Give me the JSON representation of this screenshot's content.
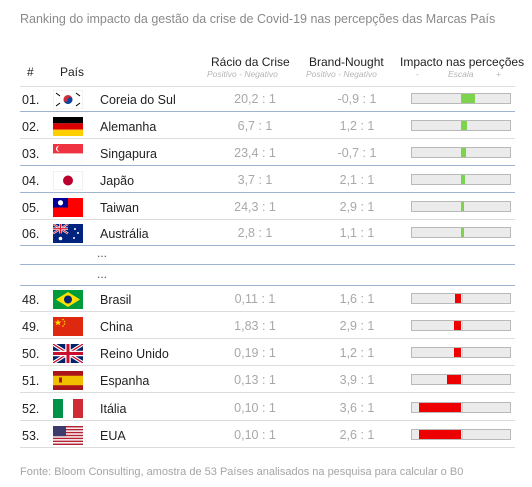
{
  "title": "Ranking do impacto da gestão da crise de Covid-19 nas percepções das Marcas País",
  "headers": {
    "rank": "#",
    "country": "País",
    "ratio": "Rácio da Crise",
    "ratio_sub": "Positivo - Negativo",
    "brand": "Brand-Nought",
    "brand_sub": "Positivo - Negativo",
    "impact": "Impacto nas perceções",
    "impact_sub": "Escala",
    "impact_minus": "-",
    "impact_plus": "+"
  },
  "ellipsis": [
    "...",
    "..."
  ],
  "footer": "Fonte: Bloom Consulting, amostra de 53 Países analisados na pesquisa para calcular o B0",
  "colors": {
    "positive": "#7dd34d",
    "negative": "#ee0000",
    "divider_blue": "#9fb4cf",
    "divider_gray": "#dcdcdc"
  },
  "chart_data": {
    "type": "table",
    "columns": [
      "#",
      "País",
      "Rácio da Crise",
      "Brand-Nought",
      "Impacto nas perceções"
    ],
    "rows": [
      {
        "rank": "01.",
        "flag": "south-korea",
        "country": "Coreia do Sul",
        "ratio": "20,2 : 1",
        "brand": "-0,9 : 1",
        "impact": 0.28
      },
      {
        "rank": "02.",
        "flag": "germany",
        "country": "Alemanha",
        "ratio": "6,7 : 1",
        "brand": "1,2 : 1",
        "impact": 0.12
      },
      {
        "rank": "03.",
        "flag": "singapore",
        "country": "Singapura",
        "ratio": "23,4 : 1",
        "brand": "-0,7 : 1",
        "impact": 0.1
      },
      {
        "rank": "04.",
        "flag": "japan",
        "country": "Japão",
        "ratio": "3,7 : 1",
        "brand": "2,1 : 1",
        "impact": 0.08
      },
      {
        "rank": "05.",
        "flag": "taiwan",
        "country": "Taiwan",
        "ratio": "24,3 : 1",
        "brand": "2,9 : 1",
        "impact": 0.06
      },
      {
        "rank": "06.",
        "flag": "australia",
        "country": "Austrália",
        "ratio": "2,8 : 1",
        "brand": "1,1 : 1",
        "impact": 0.05
      },
      {
        "rank": "48.",
        "flag": "brazil",
        "country": "Brasil",
        "ratio": "0,11 : 1",
        "brand": "1,6 : 1",
        "impact": -0.12
      },
      {
        "rank": "49.",
        "flag": "china",
        "country": "China",
        "ratio": "1,83 : 1",
        "brand": "2,9 : 1",
        "impact": -0.14
      },
      {
        "rank": "50.",
        "flag": "uk",
        "country": "Reino Unido",
        "ratio": "0,19 : 1",
        "brand": "1,2 : 1",
        "impact": -0.14
      },
      {
        "rank": "51.",
        "flag": "spain",
        "country": "Espanha",
        "ratio": "0,13 : 1",
        "brand": "3,9 : 1",
        "impact": -0.28
      },
      {
        "rank": "52.",
        "flag": "italy",
        "country": "Itália",
        "ratio": "0,10 : 1",
        "brand": "3,6 : 1",
        "impact": -0.86
      },
      {
        "rank": "53.",
        "flag": "usa",
        "country": "EUA",
        "ratio": "0,10 : 1",
        "brand": "2,6 : 1",
        "impact": -0.86
      }
    ]
  }
}
